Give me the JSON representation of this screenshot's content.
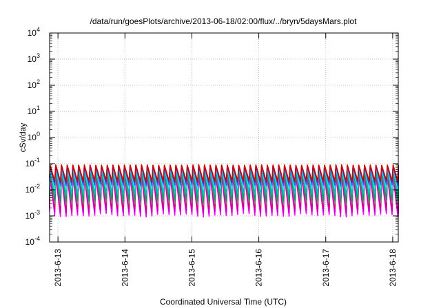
{
  "chart_data": {
    "type": "line",
    "title": "/data/run/goesPlots/archive/2013-06-18/02:00/flux/../bryn/5daysMars.plot",
    "xlabel": "Coordinated Universal Time (UTC)",
    "ylabel": "cSv/day",
    "yscale": "log",
    "ylim": [
      0.0001,
      10000
    ],
    "xlim": [
      "2013-06-12T21:00",
      "2013-06-18T02:00"
    ],
    "grid": true,
    "y_ticks": [
      {
        "base": "10",
        "exp": "-4"
      },
      {
        "base": "10",
        "exp": "-3"
      },
      {
        "base": "10",
        "exp": "-2"
      },
      {
        "base": "10",
        "exp": "-1"
      },
      {
        "base": "10",
        "exp": "0"
      },
      {
        "base": "10",
        "exp": "1"
      },
      {
        "base": "10",
        "exp": "2"
      },
      {
        "base": "10",
        "exp": "3"
      },
      {
        "base": "10",
        "exp": "4"
      }
    ],
    "x_ticks": [
      "2013-6-13",
      "2013-6-14",
      "2013-6-15",
      "2013-6-16",
      "2013-6-17",
      "2013-6-18"
    ],
    "x_tick_times": [
      "2013-06-13T00:00",
      "2013-06-14T00:00",
      "2013-06-15T00:00",
      "2013-06-16T00:00",
      "2013-06-17T00:00",
      "2013-06-18T00:00"
    ],
    "pattern": {
      "description": "sawtooth spikes roughly every 2 hours",
      "period_hours": 2.05,
      "peak_max": 0.09,
      "trough_min": 0.0009
    },
    "series": [
      {
        "color": "#ff00ff",
        "peak": 0.035,
        "trough": 0.0009
      },
      {
        "color": "#c000c0",
        "peak": 0.045,
        "trough": 0.0012
      },
      {
        "color": "#e00060",
        "peak": 0.06,
        "trough": 0.0018
      },
      {
        "color": "#808080",
        "peak": 0.06,
        "trough": 0.0025
      },
      {
        "color": "#00a060",
        "peak": 0.065,
        "trough": 0.0035
      },
      {
        "color": "#00c0c0",
        "peak": 0.07,
        "trough": 0.006
      },
      {
        "color": "#40e0e0",
        "peak": 0.075,
        "trough": 0.01
      },
      {
        "color": "#3060ff",
        "peak": 0.08,
        "trough": 0.014
      },
      {
        "color": "#2040c0",
        "peak": 0.085,
        "trough": 0.018
      },
      {
        "color": "#d00000",
        "peak": 0.09,
        "trough": 0.02
      }
    ]
  }
}
